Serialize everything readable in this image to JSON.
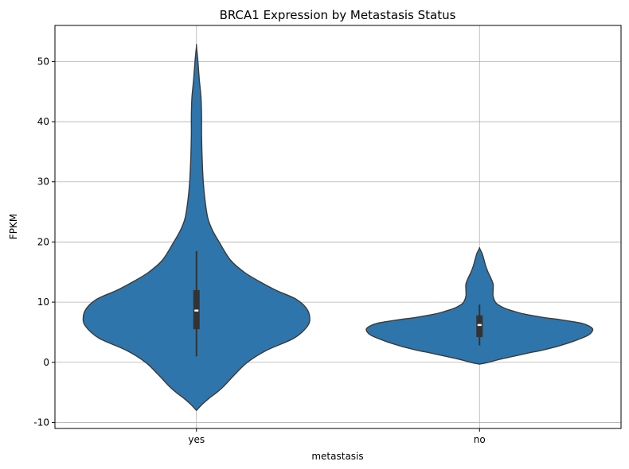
{
  "chart_data": {
    "type": "violin",
    "title": "BRCA1 Expression by Metastasis Status",
    "xlabel": "metastasis",
    "ylabel": "FPKM",
    "categories": [
      "yes",
      "no"
    ],
    "ylim": [
      -11,
      56
    ],
    "yticks": [
      -10,
      0,
      10,
      20,
      30,
      40,
      50
    ],
    "grid": true,
    "colors": {
      "fill": "#2E75AB",
      "edge": "#3A3A3A",
      "box": "#333333",
      "median": "#FFFFFF",
      "grid": "#B0B0B0"
    },
    "violins": [
      {
        "category": "yes",
        "min": -8.0,
        "max": 52.5,
        "whisker_low": 1.0,
        "q1": 5.5,
        "median": 8.6,
        "q3": 12.0,
        "whisker_high": 18.5,
        "density_halfwidth": [
          [
            -8.0,
            0.0
          ],
          [
            -7.0,
            0.05
          ],
          [
            -6.0,
            0.11
          ],
          [
            -5.0,
            0.18
          ],
          [
            -4.0,
            0.24
          ],
          [
            -2.0,
            0.34
          ],
          [
            0.0,
            0.45
          ],
          [
            2.0,
            0.62
          ],
          [
            4.0,
            0.86
          ],
          [
            6.0,
            0.98
          ],
          [
            7.5,
            1.0
          ],
          [
            9.0,
            0.97
          ],
          [
            10.5,
            0.88
          ],
          [
            12.0,
            0.7
          ],
          [
            13.5,
            0.55
          ],
          [
            15.0,
            0.42
          ],
          [
            17.0,
            0.3
          ],
          [
            20.0,
            0.2
          ],
          [
            22.0,
            0.14
          ],
          [
            24.0,
            0.1
          ],
          [
            27.0,
            0.075
          ],
          [
            30.0,
            0.06
          ],
          [
            34.0,
            0.05
          ],
          [
            38.0,
            0.045
          ],
          [
            41.0,
            0.045
          ],
          [
            44.0,
            0.04
          ],
          [
            47.0,
            0.025
          ],
          [
            50.0,
            0.013
          ],
          [
            52.5,
            0.0
          ]
        ]
      },
      {
        "category": "no",
        "min": -0.3,
        "max": 19.0,
        "whisker_low": 2.8,
        "q1": 4.2,
        "median": 6.2,
        "q3": 7.8,
        "whisker_high": 9.6,
        "density_halfwidth": [
          [
            -0.3,
            0.0
          ],
          [
            0.0,
            0.08
          ],
          [
            0.5,
            0.18
          ],
          [
            1.0,
            0.3
          ],
          [
            1.5,
            0.42
          ],
          [
            2.0,
            0.55
          ],
          [
            2.5,
            0.66
          ],
          [
            3.0,
            0.75
          ],
          [
            3.5,
            0.83
          ],
          [
            4.0,
            0.9
          ],
          [
            4.5,
            0.96
          ],
          [
            5.0,
            0.99
          ],
          [
            5.5,
            1.0
          ],
          [
            6.0,
            0.97
          ],
          [
            6.5,
            0.9
          ],
          [
            7.0,
            0.74
          ],
          [
            7.5,
            0.55
          ],
          [
            8.0,
            0.4
          ],
          [
            8.5,
            0.3
          ],
          [
            9.0,
            0.22
          ],
          [
            9.5,
            0.17
          ],
          [
            10.0,
            0.14
          ],
          [
            11.0,
            0.12
          ],
          [
            12.0,
            0.12
          ],
          [
            13.0,
            0.12
          ],
          [
            14.0,
            0.1
          ],
          [
            15.0,
            0.075
          ],
          [
            16.0,
            0.055
          ],
          [
            17.0,
            0.04
          ],
          [
            18.0,
            0.025
          ],
          [
            18.6,
            0.01
          ],
          [
            19.0,
            0.0
          ]
        ]
      }
    ]
  }
}
